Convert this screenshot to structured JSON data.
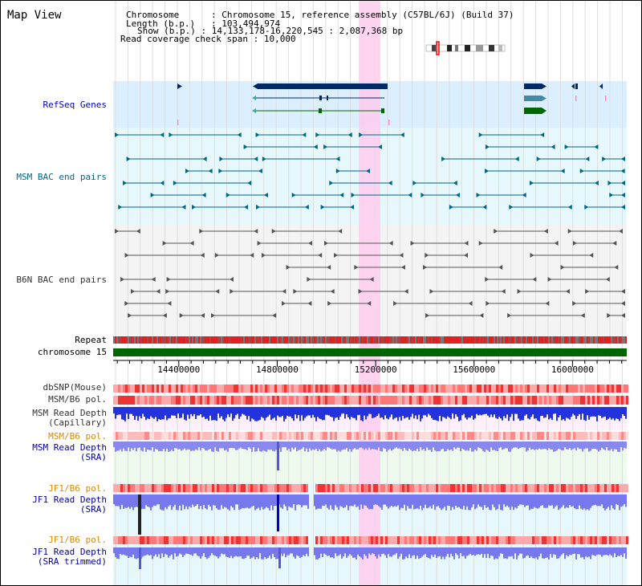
{
  "map_view_title": "Map View",
  "header": {
    "chromosome_key": "Chromosome",
    "chromosome_value": "Chromosome 15, reference assembly (C57BL/6J) (Build 37)",
    "length_key": "Length (b.p.)",
    "length_value": "103,494,974",
    "show_key": "Show (b.p.)",
    "show_value": "14,133,178-16,220,545 : 2,087,368 bp",
    "span_key": "Read coverage check span",
    "span_value": "10,000"
  },
  "tracks": {
    "refseq": "RefSeq Genes",
    "msm_bac": "MSM BAC end pairs",
    "b6n_bac": "B6N BAC end pairs",
    "repeat": "Repeat",
    "chromosome": "chromosome 15",
    "dbsnp": "dbSNP(Mouse)",
    "msm_b6_pol_1": "MSM/B6 pol.",
    "msm_depth_cap_1": "MSM Read Depth",
    "msm_depth_cap_2": "(Capillary)",
    "msm_b6_pol_2": "MSM/B6 pol.",
    "msm_depth_sra_1": "MSM Read Depth",
    "msm_depth_sra_2": "(SRA)",
    "jf1_pol_1": "JF1/B6 pol.",
    "jf1_depth_sra_1": "JF1 Read Depth",
    "jf1_depth_sra_2": "(SRA)",
    "jf1_pol_2": "JF1/B6 pol.",
    "jf1_depth_trim_1": "JF1 Read Depth",
    "jf1_depth_trim_2": "(SRA trimmed)"
  },
  "axis": {
    "ticks": [
      {
        "label": "14400000",
        "value": 14400000
      },
      {
        "label": "14800000",
        "value": 14800000
      },
      {
        "label": "15200000",
        "value": 15200000
      },
      {
        "label": "15600000",
        "value": 15600000
      },
      {
        "label": "16000000",
        "value": 16000000
      }
    ],
    "range_start": 14133178,
    "range_end": 16220545
  },
  "colors": {
    "refseq_label": "#0000cc",
    "msm_label": "#006688",
    "b6n_label": "#333333",
    "pol_label_orange": "#dd8800",
    "depth_label_blue": "#0000aa",
    "gene_dark": "#002a66",
    "gene_teal": "#4488aa",
    "gene_green": "#006600",
    "chrom_green": "#006600",
    "highlight_pink": "#ffccee"
  }
}
